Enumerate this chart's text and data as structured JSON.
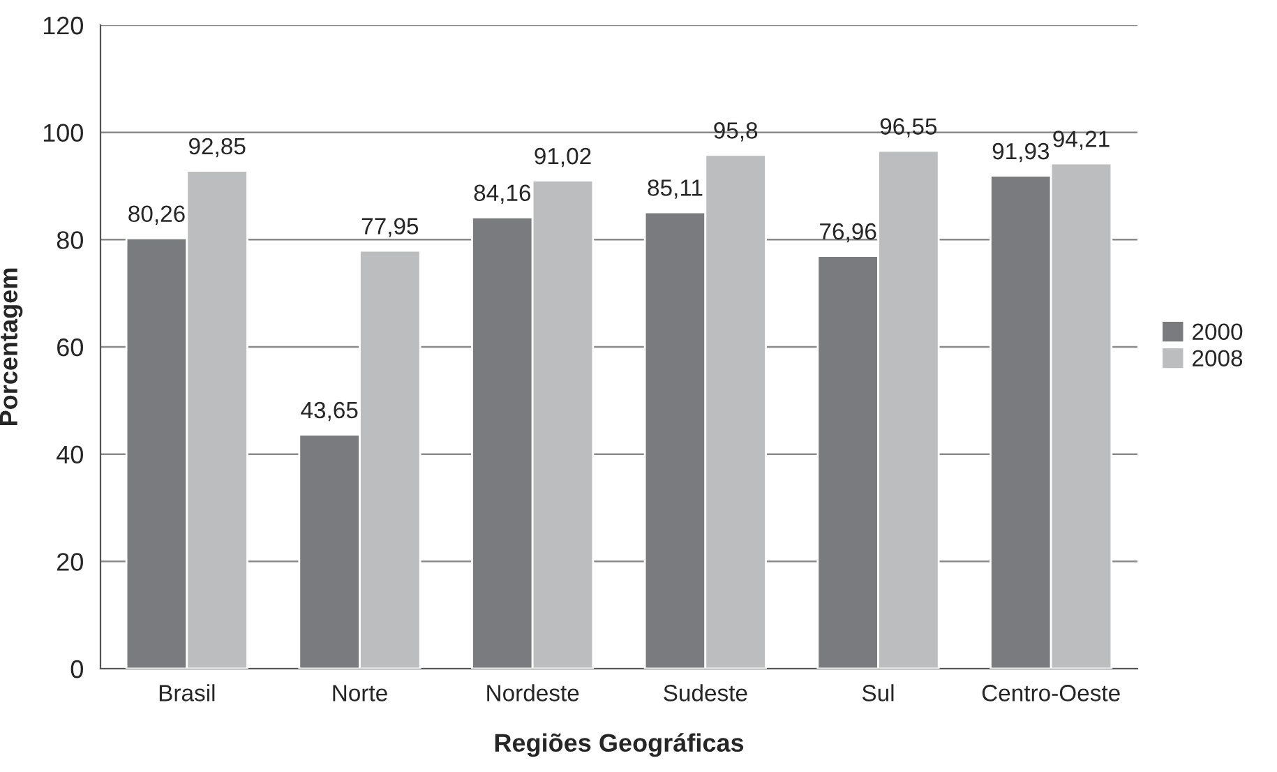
{
  "chart_data": {
    "type": "bar",
    "xlabel": "Regiões Geográficas",
    "ylabel": "Porcentagem",
    "categories": [
      "Brasil",
      "Norte",
      "Nordeste",
      "Sudeste",
      "Sul",
      "Centro-Oeste"
    ],
    "series": [
      {
        "name": "2000",
        "color": "#7a7b7f",
        "values": [
          80.26,
          43.65,
          84.16,
          85.11,
          76.96,
          91.93
        ],
        "value_labels": [
          "80,26",
          "43,65",
          "84,16",
          "85,11",
          "76,96",
          "91,93"
        ]
      },
      {
        "name": "2008",
        "color": "#bcbdbf",
        "values": [
          92.85,
          77.95,
          91.02,
          95.8,
          96.55,
          94.21
        ],
        "value_labels": [
          "92,85",
          "77,95",
          "91,02",
          "95,8",
          "96,55",
          "94,21"
        ]
      }
    ],
    "ylim": [
      0,
      120
    ],
    "yticks": [
      0,
      20,
      40,
      60,
      80,
      100,
      120
    ],
    "grid": "y",
    "legend": "right"
  }
}
